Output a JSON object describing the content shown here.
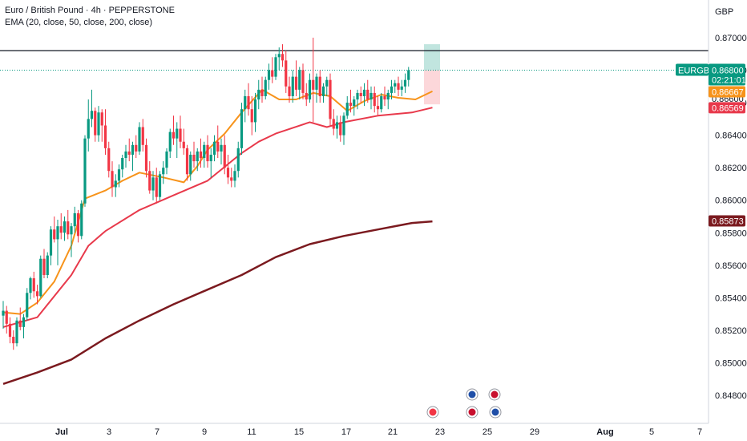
{
  "legend": {
    "title": "Euro / British Pound · 4h · PEPPERSTONE",
    "indicator": "EMA (20, close, 50, close, 200, close)"
  },
  "currency": "GBP",
  "price_tag": {
    "symbol": "EURGBP",
    "price": "0.86800",
    "countdown": "02:21:01"
  },
  "ema_tags": {
    "ema20": "0.86667",
    "ema50": "0.86569",
    "ema200": "0.85873",
    "hidden": "0.86600"
  },
  "colors": {
    "up": "#089981",
    "down": "#f23645",
    "ema20": "#f7931a",
    "ema50": "#e8394b",
    "ema200": "#7b1a1f",
    "resistance": "#131722",
    "price_line": "#089981",
    "axis_text": "#131722",
    "border": "#d1d4dc"
  },
  "chart_data": {
    "type": "line",
    "title": "Euro / British Pound · 4h · PEPPERSTONE",
    "xlabel": "",
    "ylabel": "GBP",
    "ylim": [
      0.8471,
      0.8719
    ],
    "y_ticks": [
      "0.87000",
      "0.86800",
      "0.86600",
      "0.86400",
      "0.86200",
      "0.86000",
      "0.85800",
      "0.85600",
      "0.85400",
      "0.85200",
      "0.85000",
      "0.84800"
    ],
    "x_ticks": [
      "Jul",
      "3",
      "7",
      "9",
      "11",
      "15",
      "17",
      "21",
      "23",
      "25",
      "29",
      "Aug",
      "5",
      "7"
    ],
    "resistance_level": 0.8692,
    "last_price": 0.868,
    "series": [
      {
        "name": "EMA 20",
        "x": [
          0,
          5,
          10,
          15,
          20,
          24,
          30,
          35,
          40,
          47,
          53,
          57,
          60,
          65,
          70,
          76,
          81,
          86,
          91,
          96,
          101,
          106,
          111,
          116,
          121,
          126
        ],
        "y": [
          0.8531,
          0.853,
          0.8537,
          0.855,
          0.8572,
          0.8601,
          0.8606,
          0.8612,
          0.8617,
          0.8614,
          0.8611,
          0.8621,
          0.8631,
          0.8641,
          0.8654,
          0.8668,
          0.8662,
          0.8662,
          0.8666,
          0.8664,
          0.8655,
          0.8661,
          0.8665,
          0.8663,
          0.8662,
          0.8667
        ]
      },
      {
        "name": "EMA 50",
        "x": [
          0,
          10,
          20,
          25,
          30,
          40,
          50,
          60,
          70,
          75,
          80,
          90,
          95,
          100,
          110,
          120,
          126
        ],
        "y": [
          0.8522,
          0.8528,
          0.8554,
          0.8572,
          0.8581,
          0.8594,
          0.8603,
          0.8612,
          0.8629,
          0.8636,
          0.8641,
          0.8648,
          0.8645,
          0.8648,
          0.8652,
          0.8654,
          0.8657
        ]
      },
      {
        "name": "EMA 200",
        "x": [
          0,
          10,
          20,
          30,
          40,
          50,
          60,
          70,
          80,
          90,
          100,
          110,
          120,
          126
        ],
        "y": [
          0.8487,
          0.8494,
          0.8502,
          0.8515,
          0.8526,
          0.8536,
          0.8545,
          0.8554,
          0.8565,
          0.8573,
          0.8578,
          0.8582,
          0.8586,
          0.8587
        ]
      }
    ],
    "candles": [
      {
        "o": 0.8529,
        "h": 0.8538,
        "l": 0.8521,
        "c": 0.8532
      },
      {
        "o": 0.8532,
        "h": 0.8535,
        "l": 0.8518,
        "c": 0.8524
      },
      {
        "o": 0.8524,
        "h": 0.8528,
        "l": 0.8512,
        "c": 0.8516
      },
      {
        "o": 0.8516,
        "h": 0.852,
        "l": 0.8508,
        "c": 0.8512
      },
      {
        "o": 0.8512,
        "h": 0.8528,
        "l": 0.851,
        "c": 0.8526
      },
      {
        "o": 0.8526,
        "h": 0.8534,
        "l": 0.852,
        "c": 0.8522
      },
      {
        "o": 0.8522,
        "h": 0.853,
        "l": 0.8515,
        "c": 0.8528
      },
      {
        "o": 0.8528,
        "h": 0.8546,
        "l": 0.8526,
        "c": 0.8543
      },
      {
        "o": 0.8543,
        "h": 0.8553,
        "l": 0.8539,
        "c": 0.8552
      },
      {
        "o": 0.8552,
        "h": 0.8556,
        "l": 0.854,
        "c": 0.8544
      },
      {
        "o": 0.8544,
        "h": 0.8548,
        "l": 0.8536,
        "c": 0.8541
      },
      {
        "o": 0.8541,
        "h": 0.8566,
        "l": 0.854,
        "c": 0.8564
      },
      {
        "o": 0.8564,
        "h": 0.857,
        "l": 0.8552,
        "c": 0.8554
      },
      {
        "o": 0.8554,
        "h": 0.8568,
        "l": 0.8552,
        "c": 0.8566
      },
      {
        "o": 0.8566,
        "h": 0.8584,
        "l": 0.856,
        "c": 0.8582
      },
      {
        "o": 0.8582,
        "h": 0.859,
        "l": 0.8574,
        "c": 0.8576
      },
      {
        "o": 0.8576,
        "h": 0.8588,
        "l": 0.856,
        "c": 0.8584
      },
      {
        "o": 0.8584,
        "h": 0.8592,
        "l": 0.8576,
        "c": 0.858
      },
      {
        "o": 0.858,
        "h": 0.859,
        "l": 0.8575,
        "c": 0.8587
      },
      {
        "o": 0.8587,
        "h": 0.8594,
        "l": 0.8576,
        "c": 0.8579
      },
      {
        "o": 0.8579,
        "h": 0.8586,
        "l": 0.8565,
        "c": 0.8584
      },
      {
        "o": 0.8584,
        "h": 0.8596,
        "l": 0.858,
        "c": 0.8592
      },
      {
        "o": 0.8592,
        "h": 0.8594,
        "l": 0.8574,
        "c": 0.8578
      },
      {
        "o": 0.8578,
        "h": 0.86,
        "l": 0.8576,
        "c": 0.8598
      },
      {
        "o": 0.8598,
        "h": 0.864,
        "l": 0.8596,
        "c": 0.8638
      },
      {
        "o": 0.8638,
        "h": 0.8662,
        "l": 0.863,
        "c": 0.865
      },
      {
        "o": 0.865,
        "h": 0.8668,
        "l": 0.8645,
        "c": 0.8655
      },
      {
        "o": 0.8655,
        "h": 0.8657,
        "l": 0.8636,
        "c": 0.864
      },
      {
        "o": 0.864,
        "h": 0.8658,
        "l": 0.8636,
        "c": 0.8654
      },
      {
        "o": 0.8654,
        "h": 0.8656,
        "l": 0.8636,
        "c": 0.8646
      },
      {
        "o": 0.8646,
        "h": 0.8656,
        "l": 0.8628,
        "c": 0.8632
      },
      {
        "o": 0.8632,
        "h": 0.8636,
        "l": 0.8614,
        "c": 0.8618
      },
      {
        "o": 0.8618,
        "h": 0.8624,
        "l": 0.8602,
        "c": 0.8608
      },
      {
        "o": 0.8608,
        "h": 0.8616,
        "l": 0.8602,
        "c": 0.8612
      },
      {
        "o": 0.8612,
        "h": 0.8622,
        "l": 0.8608,
        "c": 0.8619
      },
      {
        "o": 0.8619,
        "h": 0.8628,
        "l": 0.8614,
        "c": 0.8626
      },
      {
        "o": 0.8626,
        "h": 0.8634,
        "l": 0.862,
        "c": 0.863
      },
      {
        "o": 0.863,
        "h": 0.8638,
        "l": 0.8624,
        "c": 0.8628
      },
      {
        "o": 0.8628,
        "h": 0.8636,
        "l": 0.8618,
        "c": 0.8634
      },
      {
        "o": 0.8634,
        "h": 0.864,
        "l": 0.8626,
        "c": 0.863
      },
      {
        "o": 0.863,
        "h": 0.8648,
        "l": 0.8628,
        "c": 0.8645
      },
      {
        "o": 0.8645,
        "h": 0.865,
        "l": 0.863,
        "c": 0.8634
      },
      {
        "o": 0.8634,
        "h": 0.8638,
        "l": 0.8614,
        "c": 0.8618
      },
      {
        "o": 0.8618,
        "h": 0.8624,
        "l": 0.8604,
        "c": 0.8606
      },
      {
        "o": 0.8606,
        "h": 0.8618,
        "l": 0.86,
        "c": 0.8614
      },
      {
        "o": 0.8614,
        "h": 0.862,
        "l": 0.8598,
        "c": 0.8602
      },
      {
        "o": 0.8602,
        "h": 0.8618,
        "l": 0.86,
        "c": 0.8616
      },
      {
        "o": 0.8616,
        "h": 0.8624,
        "l": 0.861,
        "c": 0.862
      },
      {
        "o": 0.862,
        "h": 0.8632,
        "l": 0.8616,
        "c": 0.863
      },
      {
        "o": 0.863,
        "h": 0.8644,
        "l": 0.8626,
        "c": 0.8642
      },
      {
        "o": 0.8642,
        "h": 0.8652,
        "l": 0.8634,
        "c": 0.8638
      },
      {
        "o": 0.8638,
        "h": 0.8648,
        "l": 0.8626,
        "c": 0.8644
      },
      {
        "o": 0.8644,
        "h": 0.8652,
        "l": 0.8632,
        "c": 0.8636
      },
      {
        "o": 0.8636,
        "h": 0.8644,
        "l": 0.8628,
        "c": 0.8632
      },
      {
        "o": 0.8632,
        "h": 0.8634,
        "l": 0.8612,
        "c": 0.8616
      },
      {
        "o": 0.8616,
        "h": 0.863,
        "l": 0.8612,
        "c": 0.8628
      },
      {
        "o": 0.8628,
        "h": 0.8636,
        "l": 0.862,
        "c": 0.8624
      },
      {
        "o": 0.8624,
        "h": 0.8632,
        "l": 0.8618,
        "c": 0.863
      },
      {
        "o": 0.863,
        "h": 0.8638,
        "l": 0.862,
        "c": 0.8626
      },
      {
        "o": 0.8626,
        "h": 0.8636,
        "l": 0.862,
        "c": 0.8634
      },
      {
        "o": 0.8634,
        "h": 0.864,
        "l": 0.862,
        "c": 0.8624
      },
      {
        "o": 0.8624,
        "h": 0.8632,
        "l": 0.8614,
        "c": 0.8628
      },
      {
        "o": 0.8628,
        "h": 0.864,
        "l": 0.8624,
        "c": 0.8636
      },
      {
        "o": 0.8636,
        "h": 0.8646,
        "l": 0.8626,
        "c": 0.863
      },
      {
        "o": 0.863,
        "h": 0.8638,
        "l": 0.8622,
        "c": 0.8634
      },
      {
        "o": 0.8634,
        "h": 0.864,
        "l": 0.8616,
        "c": 0.862
      },
      {
        "o": 0.862,
        "h": 0.8628,
        "l": 0.861,
        "c": 0.8614
      },
      {
        "o": 0.8614,
        "h": 0.862,
        "l": 0.8608,
        "c": 0.8612
      },
      {
        "o": 0.8612,
        "h": 0.8622,
        "l": 0.8608,
        "c": 0.8618
      },
      {
        "o": 0.8618,
        "h": 0.8636,
        "l": 0.8614,
        "c": 0.8632
      },
      {
        "o": 0.8632,
        "h": 0.866,
        "l": 0.8628,
        "c": 0.8656
      },
      {
        "o": 0.8656,
        "h": 0.8668,
        "l": 0.8648,
        "c": 0.8664
      },
      {
        "o": 0.8664,
        "h": 0.8672,
        "l": 0.8652,
        "c": 0.8656
      },
      {
        "o": 0.8656,
        "h": 0.8664,
        "l": 0.864,
        "c": 0.8648
      },
      {
        "o": 0.8648,
        "h": 0.8666,
        "l": 0.8642,
        "c": 0.8662
      },
      {
        "o": 0.8662,
        "h": 0.8674,
        "l": 0.8656,
        "c": 0.8668
      },
      {
        "o": 0.8668,
        "h": 0.8676,
        "l": 0.866,
        "c": 0.8664
      },
      {
        "o": 0.8664,
        "h": 0.8676,
        "l": 0.8662,
        "c": 0.8674
      },
      {
        "o": 0.8674,
        "h": 0.8684,
        "l": 0.8668,
        "c": 0.868
      },
      {
        "o": 0.868,
        "h": 0.8688,
        "l": 0.8672,
        "c": 0.8676
      },
      {
        "o": 0.8676,
        "h": 0.869,
        "l": 0.8674,
        "c": 0.8688
      },
      {
        "o": 0.8688,
        "h": 0.8694,
        "l": 0.868,
        "c": 0.869
      },
      {
        "o": 0.869,
        "h": 0.8696,
        "l": 0.8682,
        "c": 0.8686
      },
      {
        "o": 0.8686,
        "h": 0.8692,
        "l": 0.8666,
        "c": 0.867
      },
      {
        "o": 0.867,
        "h": 0.8676,
        "l": 0.866,
        "c": 0.8664
      },
      {
        "o": 0.8664,
        "h": 0.868,
        "l": 0.866,
        "c": 0.8676
      },
      {
        "o": 0.8676,
        "h": 0.8686,
        "l": 0.8664,
        "c": 0.8668
      },
      {
        "o": 0.8668,
        "h": 0.8682,
        "l": 0.8662,
        "c": 0.868
      },
      {
        "o": 0.868,
        "h": 0.8684,
        "l": 0.8662,
        "c": 0.8666
      },
      {
        "o": 0.8666,
        "h": 0.8672,
        "l": 0.8658,
        "c": 0.8662
      },
      {
        "o": 0.8662,
        "h": 0.8678,
        "l": 0.866,
        "c": 0.8674
      },
      {
        "o": 0.8674,
        "h": 0.87,
        "l": 0.8648,
        "c": 0.8668
      },
      {
        "o": 0.8668,
        "h": 0.8678,
        "l": 0.866,
        "c": 0.8676
      },
      {
        "o": 0.8676,
        "h": 0.868,
        "l": 0.866,
        "c": 0.8664
      },
      {
        "o": 0.8664,
        "h": 0.8672,
        "l": 0.866,
        "c": 0.867
      },
      {
        "o": 0.867,
        "h": 0.8676,
        "l": 0.8664,
        "c": 0.8674
      },
      {
        "o": 0.8674,
        "h": 0.8678,
        "l": 0.8646,
        "c": 0.865
      },
      {
        "o": 0.865,
        "h": 0.8656,
        "l": 0.864,
        "c": 0.8644
      },
      {
        "o": 0.8644,
        "h": 0.8652,
        "l": 0.8638,
        "c": 0.8648
      },
      {
        "o": 0.8648,
        "h": 0.8652,
        "l": 0.8636,
        "c": 0.864
      },
      {
        "o": 0.864,
        "h": 0.8654,
        "l": 0.8634,
        "c": 0.8652
      },
      {
        "o": 0.8652,
        "h": 0.8664,
        "l": 0.865,
        "c": 0.866
      },
      {
        "o": 0.866,
        "h": 0.8668,
        "l": 0.8654,
        "c": 0.8658
      },
      {
        "o": 0.8658,
        "h": 0.8664,
        "l": 0.8652,
        "c": 0.8662
      },
      {
        "o": 0.8662,
        "h": 0.8668,
        "l": 0.8656,
        "c": 0.8666
      },
      {
        "o": 0.8666,
        "h": 0.867,
        "l": 0.866,
        "c": 0.8664
      },
      {
        "o": 0.8664,
        "h": 0.8672,
        "l": 0.8658,
        "c": 0.8668
      },
      {
        "o": 0.8668,
        "h": 0.8674,
        "l": 0.866,
        "c": 0.8662
      },
      {
        "o": 0.8662,
        "h": 0.867,
        "l": 0.8656,
        "c": 0.8666
      },
      {
        "o": 0.8666,
        "h": 0.867,
        "l": 0.8654,
        "c": 0.8658
      },
      {
        "o": 0.8658,
        "h": 0.8664,
        "l": 0.8652,
        "c": 0.8656
      },
      {
        "o": 0.8656,
        "h": 0.8666,
        "l": 0.8654,
        "c": 0.8664
      },
      {
        "o": 0.8664,
        "h": 0.867,
        "l": 0.8658,
        "c": 0.8662
      },
      {
        "o": 0.8662,
        "h": 0.8668,
        "l": 0.8656,
        "c": 0.8666
      },
      {
        "o": 0.8666,
        "h": 0.8674,
        "l": 0.8662,
        "c": 0.867
      },
      {
        "o": 0.867,
        "h": 0.8674,
        "l": 0.8666,
        "c": 0.8672
      },
      {
        "o": 0.8672,
        "h": 0.8676,
        "l": 0.8664,
        "c": 0.8668
      },
      {
        "o": 0.8668,
        "h": 0.8674,
        "l": 0.8664,
        "c": 0.867
      },
      {
        "o": 0.867,
        "h": 0.8678,
        "l": 0.8666,
        "c": 0.8674
      },
      {
        "o": 0.8674,
        "h": 0.8682,
        "l": 0.867,
        "c": 0.868
      }
    ]
  }
}
